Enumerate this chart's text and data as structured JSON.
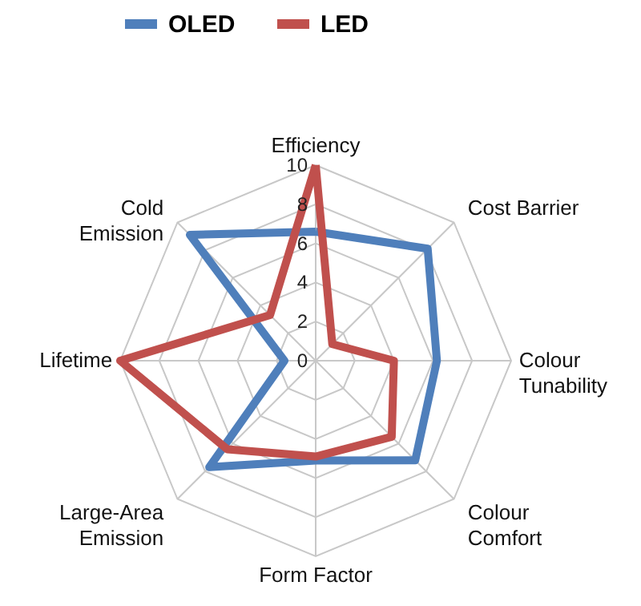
{
  "chart_data": {
    "type": "radar",
    "categories": [
      "Efficiency",
      "Cost Barrier",
      "Colour Tunability",
      "Colour Comfort",
      "Form Factor",
      "Large-Area Emission",
      "Lifetime",
      "Cold Emission"
    ],
    "series": [
      {
        "name": "OLED",
        "color": "#4f7fbb",
        "values": [
          6.6,
          8.1,
          6.2,
          7.2,
          5.1,
          7.7,
          1.6,
          9.1
        ]
      },
      {
        "name": "LED",
        "color": "#c0504d",
        "values": [
          10,
          1.2,
          4.0,
          5.5,
          4.9,
          6.4,
          10,
          3.3
        ]
      }
    ],
    "ylim": [
      0,
      10
    ],
    "yticks": [
      0,
      2,
      4,
      6,
      8,
      10
    ],
    "grid": true,
    "legend": "top",
    "line_style": "solid",
    "marker": "none"
  }
}
